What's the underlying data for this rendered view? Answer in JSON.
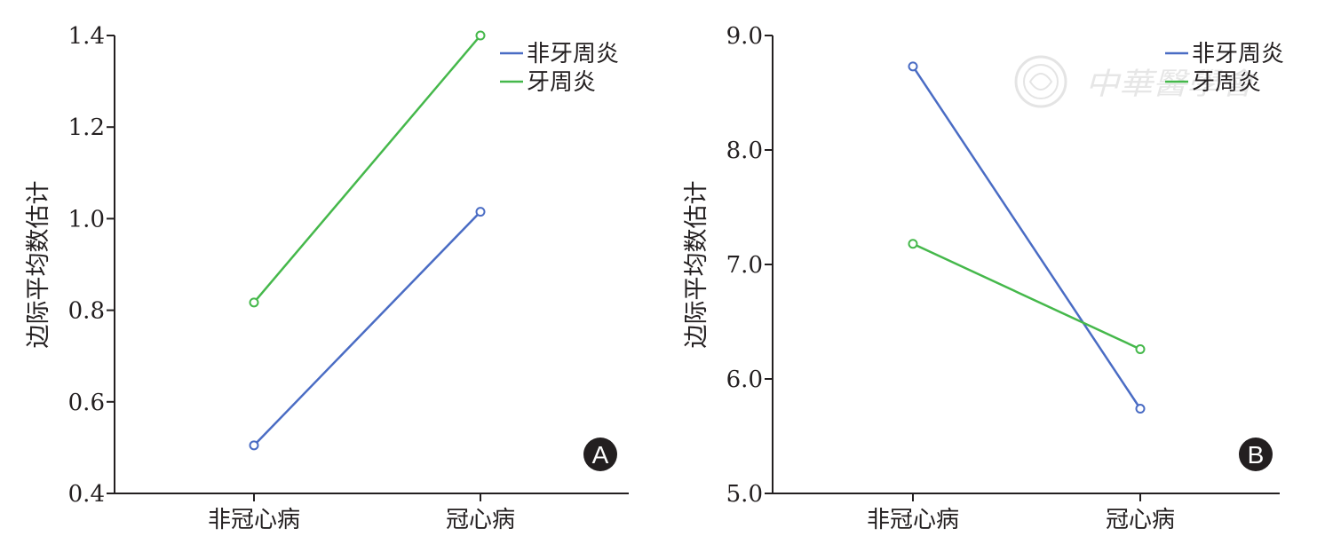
{
  "watermark": {
    "text": "中華醫學會"
  },
  "chart_data": [
    {
      "type": "line",
      "panel_label": "A",
      "title": "",
      "ylabel": "边际平均数估计",
      "xlabel": "",
      "categories": [
        "非冠心病",
        "冠心病"
      ],
      "ylim": [
        0.4,
        1.4
      ],
      "yticks": [
        "0.4",
        "0.6",
        "0.8",
        "1.0",
        "1.2",
        "1.4"
      ],
      "series": [
        {
          "name": "非牙周炎",
          "color": "#4a6cc4",
          "values": [
            0.505,
            1.015
          ]
        },
        {
          "name": "牙周炎",
          "color": "#45b84b",
          "values": [
            0.817,
            1.4
          ]
        }
      ],
      "legend": "top-right",
      "grid": false
    },
    {
      "type": "line",
      "panel_label": "B",
      "title": "",
      "ylabel": "边际平均数估计",
      "xlabel": "",
      "categories": [
        "非冠心病",
        "冠心病"
      ],
      "ylim": [
        5.0,
        9.0
      ],
      "yticks": [
        "5.0",
        "6.0",
        "7.0",
        "8.0",
        "9.0"
      ],
      "series": [
        {
          "name": "非牙周炎",
          "color": "#4a6cc4",
          "values": [
            8.73,
            5.74
          ]
        },
        {
          "name": "牙周炎",
          "color": "#45b84b",
          "values": [
            7.18,
            6.26
          ]
        }
      ],
      "legend": "top-right",
      "grid": false
    }
  ]
}
